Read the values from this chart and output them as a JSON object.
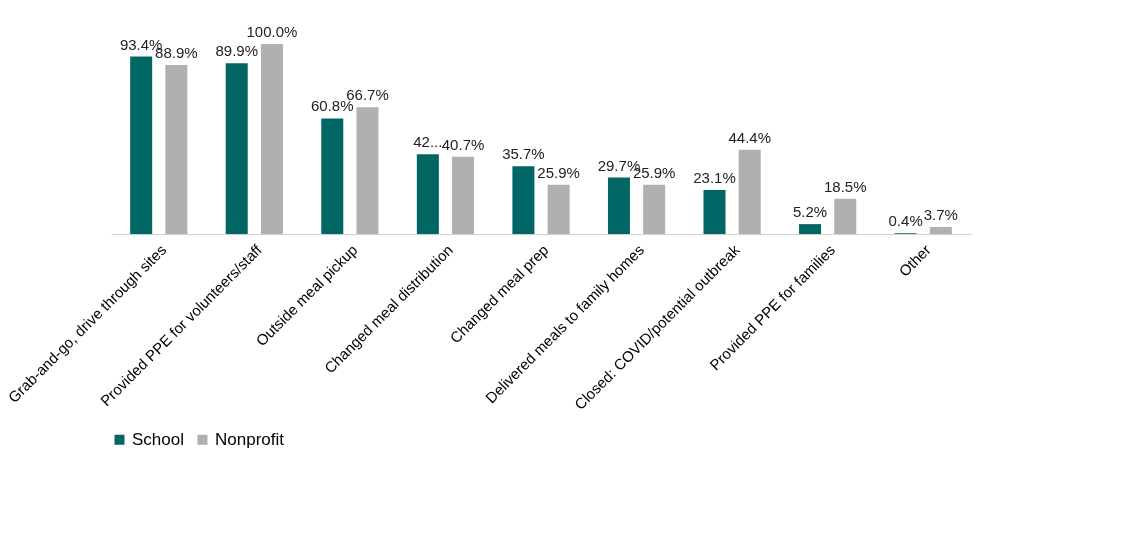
{
  "chart_data": {
    "type": "bar",
    "categories": [
      "Grab-and-go, drive through sites",
      "Provided PPE for volunteers/staff",
      "Outside meal pickup",
      "Changed meal distribution",
      "Changed meal prep",
      "Delivered meals to family homes",
      "Closed: COVID/potential outbreak",
      "Provided PPE for families",
      "Other"
    ],
    "series": [
      {
        "name": "School",
        "color": "#006663",
        "values": [
          93.4,
          89.9,
          60.8,
          42,
          35.7,
          29.7,
          23.1,
          5.2,
          0.4
        ],
        "value_labels": [
          "93.4%",
          "89.9%",
          "60.8%",
          "42...",
          "35.7%",
          "29.7%",
          "23.1%",
          "5.2%",
          "0.4%"
        ]
      },
      {
        "name": "Nonprofit",
        "color": "#b0b0b0",
        "values": [
          88.9,
          100.0,
          66.7,
          40.7,
          25.9,
          25.9,
          44.4,
          18.5,
          3.7
        ],
        "value_labels": [
          "88.9%",
          "100.0%",
          "66.7%",
          "40.7%",
          "25.9%",
          "25.9%",
          "44.4%",
          "18.5%",
          "3.7%"
        ]
      }
    ],
    "legend": "bottom",
    "grid": false
  }
}
